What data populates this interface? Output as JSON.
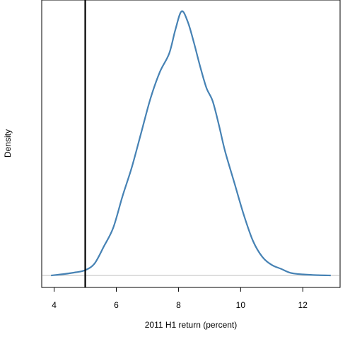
{
  "chart_data": {
    "type": "line",
    "title": "",
    "xlabel": "2011 H1 return (percent)",
    "ylabel": "Density",
    "xlim": [
      3.6,
      13.2
    ],
    "ylim": [
      0,
      1
    ],
    "x_ticks": [
      "4",
      "6",
      "8",
      "10",
      "12"
    ],
    "y_ticks_shown": false,
    "grid": false,
    "legend": "none",
    "reference_line": {
      "x": 5,
      "color": "#000000"
    },
    "baseline": {
      "y": 0,
      "color": "#bebebe"
    },
    "series": [
      {
        "color": "#4682b4",
        "x": [
          3.9,
          4.3,
          4.7,
          5.0,
          5.3,
          5.6,
          5.9,
          6.2,
          6.5,
          6.8,
          7.1,
          7.4,
          7.7,
          7.9,
          8.1,
          8.3,
          8.5,
          8.7,
          8.9,
          9.1,
          9.3,
          9.5,
          9.8,
          10.1,
          10.4,
          10.7,
          11.0,
          11.3,
          11.6,
          12.0,
          12.5,
          12.9
        ],
        "y": [
          0.0,
          0.005,
          0.012,
          0.02,
          0.045,
          0.11,
          0.18,
          0.3,
          0.41,
          0.54,
          0.67,
          0.77,
          0.84,
          0.93,
          1.0,
          0.96,
          0.88,
          0.79,
          0.71,
          0.66,
          0.57,
          0.47,
          0.35,
          0.23,
          0.13,
          0.07,
          0.04,
          0.025,
          0.01,
          0.004,
          0.001,
          0.0
        ]
      }
    ]
  }
}
